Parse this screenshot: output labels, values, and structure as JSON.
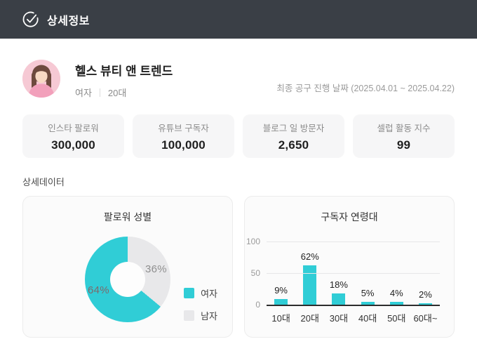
{
  "header": {
    "title": "상세정보",
    "bg_color": "#3a3f46",
    "icon": "check-circle-icon"
  },
  "profile": {
    "name": "헬스 뷰티 앤 트렌드",
    "gender": "여자",
    "age_group": "20대",
    "date_note": "최종 공구 진행 날짜 (2025.04.01 ~ 2025.04.22)"
  },
  "stats": [
    {
      "label": "인스타 팔로워",
      "value": "300,000"
    },
    {
      "label": "유튜브 구독자",
      "value": "100,000"
    },
    {
      "label": "블로그 일 방문자",
      "value": "2,650"
    },
    {
      "label": "셀럽 활동 지수",
      "value": "99"
    }
  ],
  "section_title": "상세데이터",
  "chart_data": [
    {
      "type": "pie",
      "donut": true,
      "title": "팔로워 성별",
      "labels": [
        "여자",
        "남자"
      ],
      "values": [
        64,
        36
      ],
      "data_labels": [
        "64%",
        "36%"
      ],
      "colors": [
        "#30cdd6",
        "#e8e8ea"
      ],
      "legend_position": "bottom-right"
    },
    {
      "type": "bar",
      "title": "구독자 연령대",
      "categories": [
        "10대",
        "20대",
        "30대",
        "40대",
        "50대",
        "60대~"
      ],
      "values": [
        9,
        62,
        18,
        5,
        4,
        2
      ],
      "data_labels": [
        "9%",
        "62%",
        "18%",
        "5%",
        "4%",
        "2%"
      ],
      "xlabel": "",
      "ylabel": "",
      "ylim": [
        0,
        100
      ],
      "yticks": [
        0,
        50,
        100
      ],
      "bar_color": "#30cdd6",
      "grid": true,
      "legend_position": "none"
    }
  ]
}
